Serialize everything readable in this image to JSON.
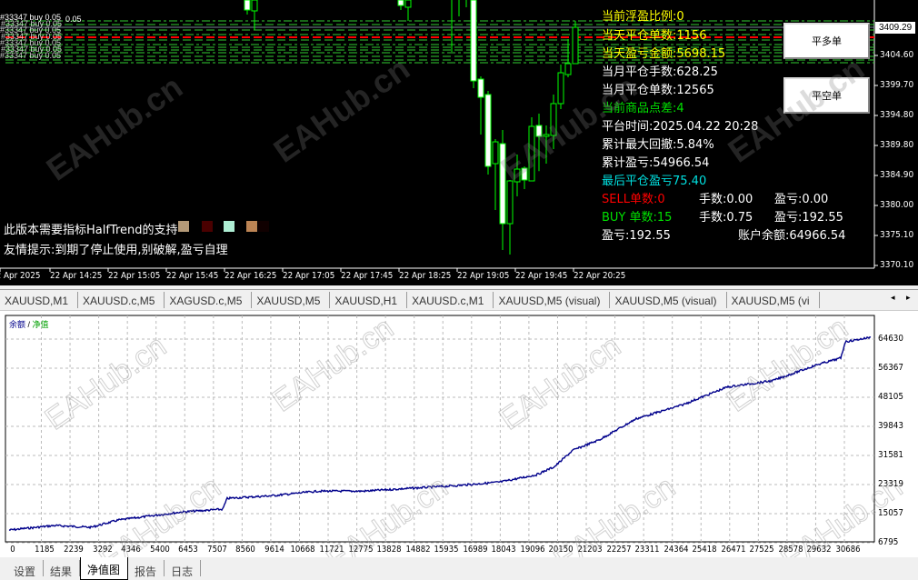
{
  "price_chart": {
    "price_axis": [
      "3409.29",
      "3404.60",
      "3399.70",
      "3394.80",
      "3389.80",
      "3384.90",
      "3380.00",
      "3375.10",
      "3370.10"
    ],
    "current_price": "3409.29",
    "time_axis": [
      "22 Apr 2025",
      "22 Apr 14:25",
      "22 Apr 15:05",
      "22 Apr 15:45",
      "22 Apr 16:25",
      "22 Apr 17:05",
      "22 Apr 17:45",
      "22 Apr 18:25",
      "22 Apr 19:05",
      "22 Apr 19:45",
      "22 Apr 20:25"
    ],
    "order_label": "#33347 buy 0.05",
    "order_label_tail": "0.05",
    "candles": [
      {
        "fill": "white",
        "open": 3414.5,
        "close": 3412.07,
        "high": 3414.5,
        "low": 3411.32
      },
      {
        "fill": "hollow",
        "open": 3411.92,
        "close": 3414.5,
        "high": 3414.5,
        "low": 3408.78
      },
      {
        "fill": "white",
        "open": 3414.5,
        "close": 3412.81,
        "high": 3414.5,
        "low": 3412.07
      },
      {
        "fill": "hollow",
        "open": 3412.52,
        "close": 3414.5,
        "high": 3414.5,
        "low": 3410.27
      },
      {
        "fill": "wick",
        "open": 3414.5,
        "close": 3414.5,
        "high": 3414.5,
        "low": 3405.2
      },
      {
        "fill": "wick",
        "open": 3414.5,
        "close": 3414.5,
        "high": 3414.5,
        "low": 3411.02
      },
      {
        "fill": "wick",
        "open": 3414.5,
        "close": 3414.5,
        "high": 3414.5,
        "low": 3412.52
      },
      {
        "fill": "white",
        "open": 3414.5,
        "close": 3400.42,
        "high": 3414.5,
        "low": 3399.22
      },
      {
        "fill": "white",
        "open": 3400.72,
        "close": 3397.73,
        "high": 3401.17,
        "low": 3391.61
      },
      {
        "fill": "white",
        "open": 3398.18,
        "close": 3386.38,
        "high": 3398.78,
        "low": 3385.04
      },
      {
        "fill": "hollow",
        "open": 3386.83,
        "close": 3390.41,
        "high": 3390.86,
        "low": 3379.21
      },
      {
        "fill": "white",
        "open": 3390.11,
        "close": 3376.97,
        "high": 3392.35,
        "low": 3372.64
      },
      {
        "fill": "hollow",
        "open": 3376.97,
        "close": 3383.99,
        "high": 3384.14,
        "low": 3371.89
      },
      {
        "fill": "hollow",
        "open": 3383.84,
        "close": 3385.93,
        "high": 3388.32,
        "low": 3381.45
      },
      {
        "fill": "white",
        "open": 3386.08,
        "close": 3384.14,
        "high": 3386.38,
        "low": 3382.65
      },
      {
        "fill": "hollow",
        "open": 3383.99,
        "close": 3392.95,
        "high": 3394.44,
        "low": 3383.99
      },
      {
        "fill": "white",
        "open": 3393.1,
        "close": 3391.31,
        "high": 3395.04,
        "low": 3385.59
      },
      {
        "fill": "hollow",
        "open": 3391.31,
        "close": 3391.61,
        "high": 3393.1,
        "low": 3386.83
      },
      {
        "fill": "hollow",
        "open": 3391.46,
        "close": 3396.69,
        "high": 3398.18,
        "low": 3389.22
      },
      {
        "fill": "hollow",
        "open": 3396.69,
        "close": 3401.76,
        "high": 3403.11,
        "low": 3395.79
      },
      {
        "fill": "hollow",
        "open": 3401.46,
        "close": 3403.26,
        "high": 3407.29,
        "low": 3401.02
      },
      {
        "fill": "hollow",
        "open": 3403.26,
        "close": 3409.23,
        "high": 3410.27,
        "low": 3403.26
      }
    ],
    "colors": {
      "bull": "#00ff00",
      "bear_fill": "#ffffff",
      "level_green": "#32cd32",
      "level_red": "#ff0000",
      "bid_line": "#778899"
    }
  },
  "info_panel": {
    "float_ratio": "当前浮盈比例:0",
    "today_closed_orders": "当天平仓单数:1156",
    "today_pnl": "当天盈亏金额:5698.15",
    "month_lots": "当月平仓手数:628.25",
    "month_orders": "当月平仓单数:12565",
    "spread": "当前商品点差:4",
    "platform_time": "平台时间:2025.04.22 20:28",
    "max_drawdown": "累计最大回撤:5.84%",
    "total_pnl": "累计盈亏:54966.54",
    "last_close_pnl": "最后平仓盈亏75.40",
    "sell_count": "SELL单数:0",
    "sell_lots": "手数:0.00",
    "sell_pnl": "盈亏:0.00",
    "buy_count": "BUY 单数:15",
    "buy_lots": "手数:0.75",
    "buy_pnl": "盈亏:192.55",
    "pnl": "盈亏:192.55",
    "balance": "账户余额:64966.54"
  },
  "buttons": {
    "close_buy": "平多单",
    "close_sell": "平空单"
  },
  "notices": {
    "indicator_required": "此版本需要指标HalfTrend的支持",
    "expiry_tip": "友情提示:到期了停止使用,别破解,盈亏自理",
    "swatch_colors": [
      "#b49a78",
      "#4a0000",
      "#aeeed4",
      "#bc8454",
      "#100000"
    ]
  },
  "chart_tabs": [
    "XAUUSD,M1",
    "XAUUSD.c,M5",
    "XAGUSD.c,M5",
    "XAUUSD,M5",
    "XAUUSD,H1",
    "XAUUSD.c,M1",
    "XAUUSD,M5 (visual)",
    "XAUUSD,M5 (visual)",
    "XAUUSD,M5 (vi"
  ],
  "equity_chart": {
    "type": "line",
    "legend_balance": "余额",
    "legend_sep": " / ",
    "legend_equity": "净值",
    "y_ticks": [
      "64630",
      "56367",
      "48105",
      "39843",
      "31581",
      "23319",
      "15057",
      "6795"
    ],
    "x_ticks": [
      "0",
      "1185",
      "2239",
      "3292",
      "4346",
      "5400",
      "6453",
      "7507",
      "8560",
      "9614",
      "10668",
      "11721",
      "12775",
      "13828",
      "14882",
      "15935",
      "16989",
      "18043",
      "19096",
      "20150",
      "21203",
      "22257",
      "23311",
      "24364",
      "25418",
      "26471",
      "27525",
      "28578",
      "29632",
      "30686"
    ],
    "ylim": [
      6795,
      64630
    ],
    "xlim": [
      0,
      31700
    ],
    "series": [
      {
        "color": "#00008b",
        "points": [
          [
            0,
            10394
          ],
          [
            1670,
            11679
          ],
          [
            3005,
            11165
          ],
          [
            4007,
            13221
          ],
          [
            6344,
            15534
          ],
          [
            7847,
            16305
          ],
          [
            8014,
            19390
          ],
          [
            9683,
            20161
          ],
          [
            11353,
            21446
          ],
          [
            13022,
            21446
          ],
          [
            14692,
            22217
          ],
          [
            16361,
            22988
          ],
          [
            18031,
            24017
          ],
          [
            19366,
            26073
          ],
          [
            20034,
            28386
          ],
          [
            20702,
            33013
          ],
          [
            21704,
            36097
          ],
          [
            23039,
            42009
          ],
          [
            24709,
            45865
          ],
          [
            26378,
            51006
          ],
          [
            28048,
            52805
          ],
          [
            29717,
            57432
          ],
          [
            30552,
            59231
          ],
          [
            30719,
            63858
          ],
          [
            31654,
            65143
          ]
        ]
      }
    ]
  },
  "bottom_tabs": [
    "设置",
    "结果",
    "净值图",
    "报告",
    "日志"
  ],
  "active_bottom_tab": "净值图",
  "watermark": "EAHub.cn"
}
